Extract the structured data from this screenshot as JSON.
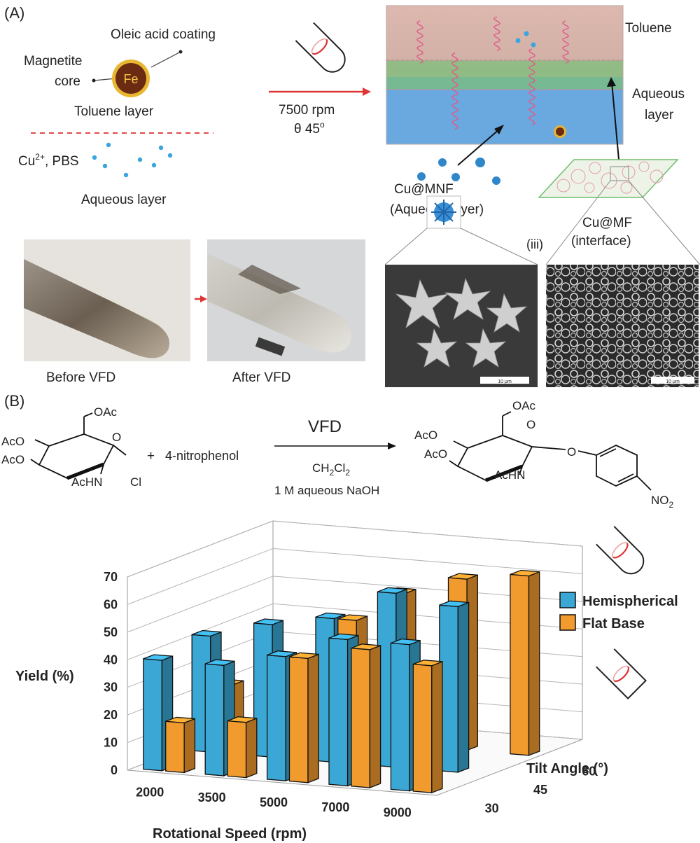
{
  "panelA": {
    "tag": "(A)",
    "oleic": "Oleic acid coating",
    "core_line1": "Magnetite",
    "core_line2": "core",
    "fe": "Fe",
    "toluene_layer": "Toluene layer",
    "cu_pbs": "Cu",
    "cu_sup": "2+",
    "cu_pbs_rest": ", PBS",
    "aqueous_layer": "Aqueous layer",
    "rpm": "7500 rpm",
    "theta": "θ 45",
    "theta_sup": "o",
    "toluene": "Toluene",
    "aqueous_line1": "Aqueous",
    "aqueous_line2": "layer",
    "mnf_line1": "Cu@MNF",
    "mnf_line2": "(Aqueous layer)",
    "mf_line1": "Cu@MF",
    "mf_line2": "(interface)",
    "iii": "(iii)",
    "before": "Before VFD",
    "after": "After VFD",
    "scale1": "10 μm",
    "scale2": "10 μm"
  },
  "panelB": {
    "tag": "(B)",
    "reagent_oac_top": "OAc",
    "reagent_aco1": "AcO",
    "reagent_aco2": "AcO",
    "reagent_achn": "AcHN",
    "reagent_o": "O",
    "reagent_cl": "Cl",
    "plus": "+",
    "nitrophenol": "4-nitrophenol",
    "vfd": "VFD",
    "solvent_ch": "CH",
    "solvent_sub": "2",
    "solvent_cl": "Cl",
    "solvent_sub2": "2",
    "base": "1 M aqueous NaOH",
    "product_oac_top": "OAc",
    "product_aco1": "AcO",
    "product_aco2": "AcO",
    "product_achn": "AcHN",
    "product_o_ring": "O",
    "product_o_link": "O",
    "no2": "NO",
    "no2_sub": "2"
  },
  "chart_data": {
    "type": "bar",
    "subtype": "3d-bar",
    "ylabel": "Yield (%)",
    "xlabel": "Rotational Speed (rpm)",
    "zlabel": "Tilt Angle (°)",
    "yticks": [
      "0",
      "10",
      "20",
      "30",
      "40",
      "50",
      "60",
      "70"
    ],
    "ylim": [
      0,
      70
    ],
    "xcategories": [
      "2000",
      "3500",
      "5000",
      "7000",
      "9000"
    ],
    "zcategories": [
      "30",
      "45",
      "60"
    ],
    "legend_position": "right",
    "series": [
      {
        "name": "Hemispherical",
        "color": "#3aa7d4",
        "values": {
          "30": [
            40,
            40,
            45,
            53,
            53
          ],
          "45": [
            42,
            48,
            52,
            63,
            60
          ],
          "60": [
            null,
            null,
            null,
            null,
            null
          ]
        }
      },
      {
        "name": "Flat Base",
        "color": "#f19a2e",
        "values": {
          "30": [
            18,
            20,
            45,
            50,
            46
          ],
          "45": [
            25,
            null,
            52,
            null,
            null
          ],
          "60": [
            null,
            null,
            55,
            62,
            65
          ]
        }
      }
    ]
  },
  "legend": {
    "hemi": "Hemispherical",
    "flat": "Flat Base"
  }
}
